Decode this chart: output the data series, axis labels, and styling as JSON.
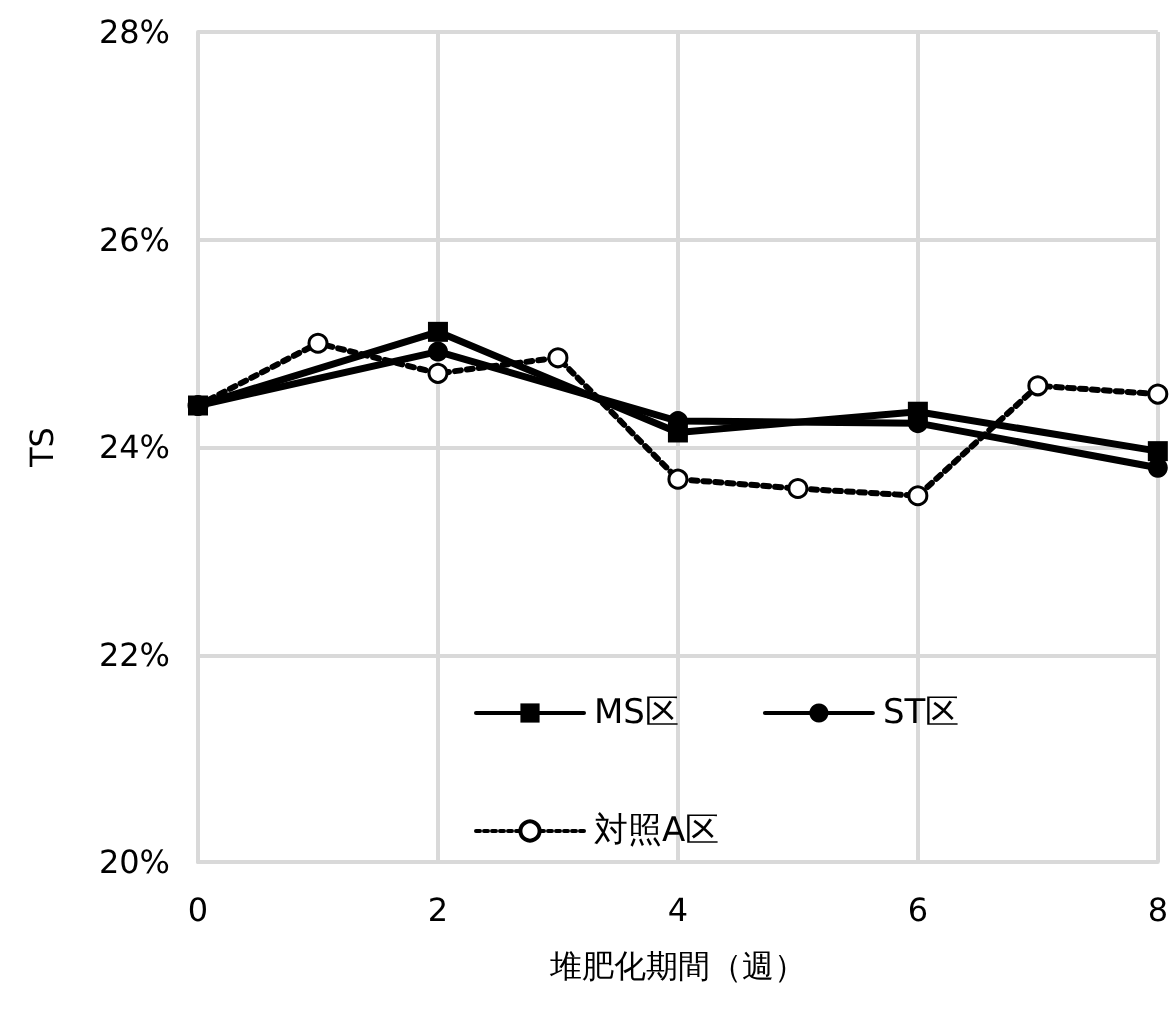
{
  "chart_data": {
    "type": "line",
    "xlabel": "堆肥化期間（週）",
    "ylabel": "TS",
    "xlim": [
      0,
      8
    ],
    "xticks": [
      0,
      2,
      4,
      6,
      8
    ],
    "ylim": [
      20,
      28
    ],
    "yticks": [
      {
        "value": 20,
        "label": "20%"
      },
      {
        "value": 22,
        "label": "22%"
      },
      {
        "value": 24,
        "label": "24%"
      },
      {
        "value": 26,
        "label": "26%"
      },
      {
        "value": 28,
        "label": "28%"
      }
    ],
    "grid": true,
    "legend": "bottom",
    "series": [
      {
        "name": "MS区",
        "color": "#000000",
        "marker": "square",
        "line_style": "solid",
        "x": [
          0,
          2,
          4,
          6,
          8
        ],
        "values": [
          24.4,
          25.11,
          24.14,
          24.34,
          23.96
        ]
      },
      {
        "name": "ST区",
        "color": "#000000",
        "marker": "circle",
        "line_style": "solid",
        "x": [
          0,
          2,
          4,
          6,
          8
        ],
        "values": [
          24.4,
          24.92,
          24.25,
          24.23,
          23.8
        ]
      },
      {
        "name": "対照A区",
        "color": "#000000",
        "marker": "circle",
        "line_style": "dotted",
        "x": [
          0,
          1,
          2,
          3,
          4,
          5,
          6,
          7,
          8
        ],
        "values": [
          24.4,
          25.0,
          24.71,
          24.86,
          23.69,
          23.6,
          23.53,
          24.59,
          24.51
        ]
      }
    ]
  }
}
